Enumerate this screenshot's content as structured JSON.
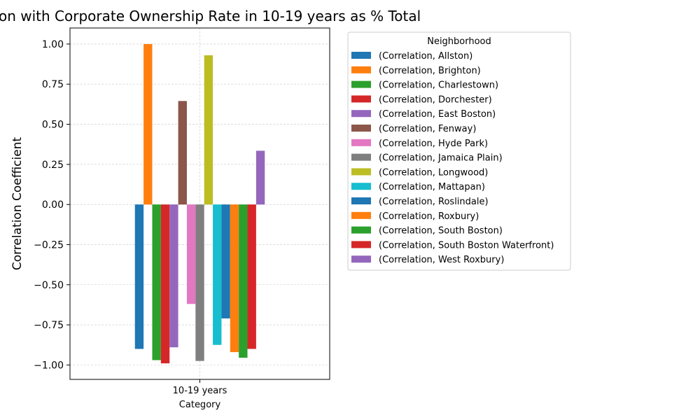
{
  "chart_data": {
    "type": "bar",
    "title": "on with Corporate Ownership Rate in 10-19 years as % Total",
    "xlabel": "Category",
    "ylabel": "Correlation Coefficient",
    "categories": [
      "10-19 years"
    ],
    "ylim": [
      -1.09,
      1.1
    ],
    "yticks": [
      1.0,
      0.75,
      0.5,
      0.25,
      0.0,
      -0.25,
      -0.5,
      -0.75,
      -1.0
    ],
    "ytick_labels": [
      "1.00",
      "0.75",
      "0.50",
      "0.25",
      "0.00",
      "−0.25",
      "−0.50",
      "−0.75",
      "−1.00"
    ],
    "grid": true,
    "legend_title": "Neighborhood",
    "legend_position": "outside-right",
    "series": [
      {
        "name": "(Correlation, Allston)",
        "values": [
          -0.9
        ],
        "color": "#1f77b4"
      },
      {
        "name": "(Correlation, Brighton)",
        "values": [
          1.0
        ],
        "color": "#ff7f0e"
      },
      {
        "name": "(Correlation, Charlestown)",
        "values": [
          -0.97
        ],
        "color": "#2ca02c"
      },
      {
        "name": "(Correlation, Dorchester)",
        "values": [
          -0.99
        ],
        "color": "#d62728"
      },
      {
        "name": "(Correlation, East Boston)",
        "values": [
          -0.89
        ],
        "color": "#9467bd"
      },
      {
        "name": "(Correlation, Fenway)",
        "values": [
          0.645
        ],
        "color": "#8c564b"
      },
      {
        "name": "(Correlation, Hyde Park)",
        "values": [
          -0.62
        ],
        "color": "#e377c2"
      },
      {
        "name": "(Correlation, Jamaica Plain)",
        "values": [
          -0.975
        ],
        "color": "#7f7f7f"
      },
      {
        "name": "(Correlation, Longwood)",
        "values": [
          0.93
        ],
        "color": "#bcbd22"
      },
      {
        "name": "(Correlation, Mattapan)",
        "values": [
          -0.875
        ],
        "color": "#17becf"
      },
      {
        "name": "(Correlation, Roslindale)",
        "values": [
          -0.71
        ],
        "color": "#1f77b4"
      },
      {
        "name": "(Correlation, Roxbury)",
        "values": [
          -0.92
        ],
        "color": "#ff7f0e"
      },
      {
        "name": "(Correlation, South Boston)",
        "values": [
          -0.955
        ],
        "color": "#2ca02c"
      },
      {
        "name": "(Correlation, South Boston Waterfront)",
        "values": [
          -0.9
        ],
        "color": "#d62728"
      },
      {
        "name": "(Correlation, West Roxbury)",
        "values": [
          0.335
        ],
        "color": "#9467bd"
      }
    ]
  }
}
